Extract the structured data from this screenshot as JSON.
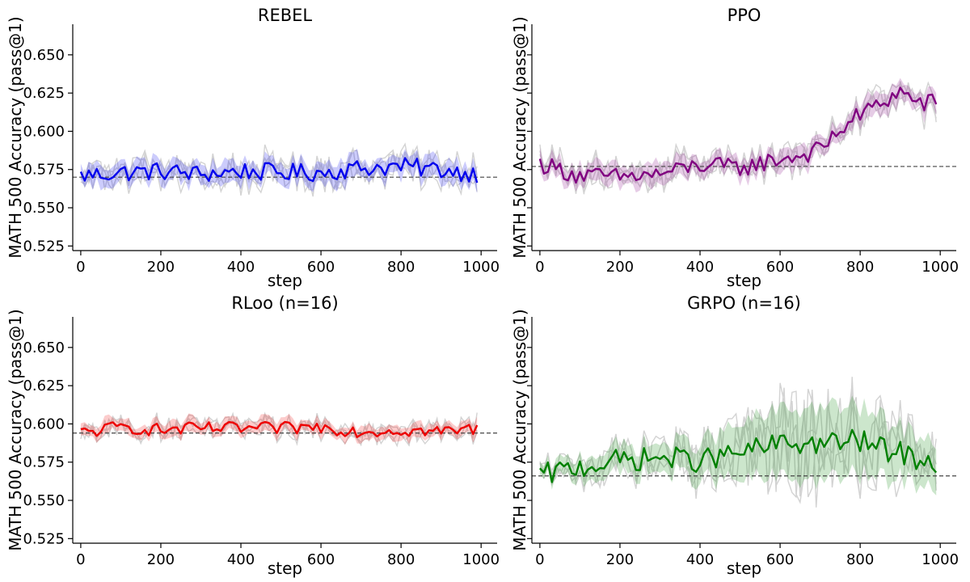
{
  "colors": {
    "REBEL": "#0000ee",
    "PPO": "#800080",
    "RLoo (n=16)": "#ee0000",
    "GRPO (n=16)": "#008000",
    "background_runs": "#d3d3d3",
    "baseline": "#444444"
  },
  "chart_data": [
    {
      "type": "line",
      "title": "REBEL",
      "xlabel": "step",
      "ylabel": "MATH 500 Accuracy (pass@1)",
      "xlim": [
        -20,
        1040
      ],
      "ylim": [
        0.522,
        0.67
      ],
      "xticks": [
        0,
        200,
        400,
        600,
        800,
        1000
      ],
      "yticks": [
        0.525,
        0.55,
        0.575,
        0.6,
        0.625,
        0.65
      ],
      "xtick_labels": [
        "0",
        "200",
        "400",
        "600",
        "800",
        "1000"
      ],
      "ytick_labels": [
        "0.525",
        "0.550",
        "0.575",
        "0.600",
        "0.625",
        "0.650"
      ],
      "show_y_tick_labels": true,
      "baseline": 0.57,
      "band_width": 0.007,
      "x": [
        0,
        100,
        200,
        300,
        400,
        500,
        600,
        700,
        800,
        900,
        990
      ],
      "mean": [
        0.571,
        0.573,
        0.574,
        0.572,
        0.574,
        0.573,
        0.573,
        0.576,
        0.577,
        0.575,
        0.572
      ],
      "grid": false,
      "legend": "none"
    },
    {
      "type": "line",
      "title": "PPO",
      "xlabel": "step",
      "ylabel": "MATH 500 Accuracy (pass@1)",
      "xlim": [
        -20,
        1040
      ],
      "ylim": [
        0.522,
        0.67
      ],
      "xticks": [
        0,
        200,
        400,
        600,
        800,
        1000
      ],
      "yticks": [
        0.525,
        0.55,
        0.575,
        0.6,
        0.625,
        0.65
      ],
      "xtick_labels": [
        "0",
        "200",
        "400",
        "600",
        "800",
        "1000"
      ],
      "ytick_labels": [
        "",
        "",
        "",
        "",
        "",
        ""
      ],
      "show_y_tick_labels": false,
      "baseline": 0.577,
      "band_width": 0.007,
      "x": [
        0,
        100,
        200,
        300,
        400,
        500,
        600,
        650,
        700,
        750,
        800,
        850,
        900,
        950,
        990
      ],
      "mean": [
        0.579,
        0.571,
        0.57,
        0.572,
        0.578,
        0.576,
        0.582,
        0.584,
        0.588,
        0.601,
        0.611,
        0.618,
        0.626,
        0.618,
        0.619
      ],
      "grid": false,
      "legend": "none"
    },
    {
      "type": "line",
      "title": "RLoo (n=16)",
      "xlabel": "step",
      "ylabel": "MATH 500 Accuracy (pass@1)",
      "xlim": [
        -20,
        1040
      ],
      "ylim": [
        0.522,
        0.67
      ],
      "xticks": [
        0,
        200,
        400,
        600,
        800,
        1000
      ],
      "yticks": [
        0.525,
        0.55,
        0.575,
        0.6,
        0.625,
        0.65
      ],
      "xtick_labels": [
        "0",
        "200",
        "400",
        "600",
        "800",
        "1000"
      ],
      "ytick_labels": [
        "0.525",
        "0.550",
        "0.575",
        "0.600",
        "0.625",
        "0.650"
      ],
      "show_y_tick_labels": true,
      "baseline": 0.594,
      "band_width": 0.005,
      "x": [
        0,
        100,
        200,
        300,
        400,
        500,
        600,
        700,
        800,
        900,
        990
      ],
      "mean": [
        0.594,
        0.598,
        0.596,
        0.597,
        0.597,
        0.597,
        0.598,
        0.595,
        0.596,
        0.595,
        0.597
      ],
      "grid": false,
      "legend": "none"
    },
    {
      "type": "line",
      "title": "GRPO (n=16)",
      "xlabel": "step",
      "ylabel": "MATH 500 Accuracy (pass@1)",
      "xlim": [
        -20,
        1040
      ],
      "ylim": [
        0.522,
        0.67
      ],
      "xticks": [
        0,
        200,
        400,
        600,
        800,
        1000
      ],
      "yticks": [
        0.525,
        0.55,
        0.575,
        0.6,
        0.625,
        0.65
      ],
      "xtick_labels": [
        "0",
        "200",
        "400",
        "600",
        "800",
        "1000"
      ],
      "ytick_labels": [
        "",
        "",
        "",
        "",
        "",
        ""
      ],
      "show_y_tick_labels": false,
      "baseline": 0.566,
      "band_width": 0.009,
      "band_widths": [
        0.004,
        0.007,
        0.009,
        0.009,
        0.012,
        0.018,
        0.022,
        0.024,
        0.022,
        0.02,
        0.017,
        0.015
      ],
      "x": [
        0,
        100,
        200,
        300,
        400,
        500,
        600,
        700,
        800,
        850,
        900,
        990
      ],
      "mean": [
        0.566,
        0.572,
        0.576,
        0.578,
        0.576,
        0.581,
        0.587,
        0.587,
        0.589,
        0.584,
        0.581,
        0.574
      ],
      "grid": false,
      "legend": "none"
    }
  ]
}
